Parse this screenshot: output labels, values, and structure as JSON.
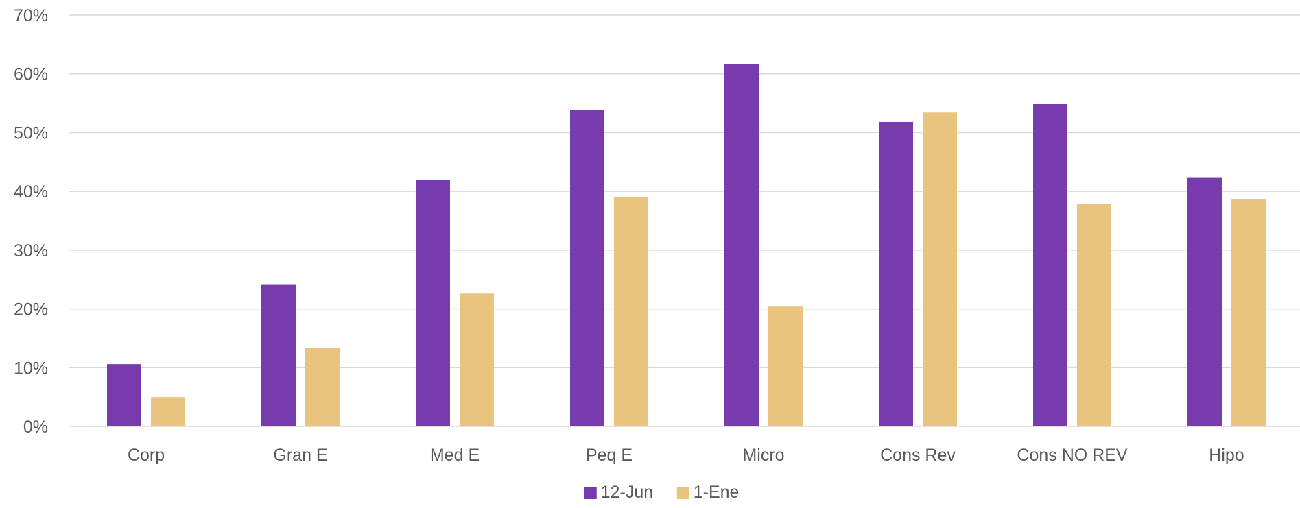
{
  "chart_data": {
    "type": "bar",
    "title": "",
    "xlabel": "",
    "ylabel": "",
    "ylim": [
      0,
      70
    ],
    "y_ticks": [
      "0%",
      "10%",
      "20%",
      "30%",
      "40%",
      "50%",
      "60%",
      "70%"
    ],
    "y_tick_values": [
      0,
      10,
      20,
      30,
      40,
      50,
      60,
      70
    ],
    "grid": true,
    "legend_position": "bottom",
    "categories": [
      "Corp",
      "Gran E",
      "Med E",
      "Peq E",
      "Micro",
      "Cons Rev",
      "Cons NO REV",
      "Hipo"
    ],
    "series": [
      {
        "name": "12-Jun",
        "color": "#773bae",
        "values": [
          10.6,
          24.2,
          41.9,
          53.8,
          61.6,
          51.8,
          54.9,
          42.4
        ]
      },
      {
        "name": "1-Ene",
        "color": "#e8c47f",
        "values": [
          5.0,
          13.4,
          22.6,
          39.0,
          20.4,
          53.4,
          37.8,
          38.7
        ]
      }
    ]
  }
}
